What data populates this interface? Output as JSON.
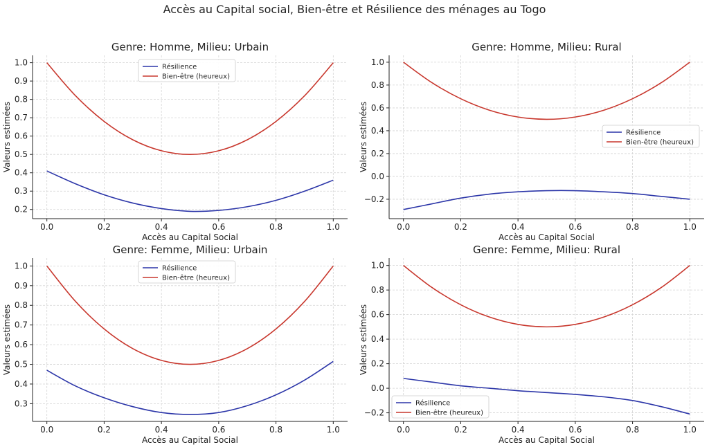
{
  "suptitle": "Accès au Capital social, Bien-être et Résilience des ménages au Togo",
  "colors": {
    "resilience": "#2b35a8",
    "bienetre": "#c8372d"
  },
  "chart_data": [
    {
      "type": "line",
      "title": "Genre: Homme, Milieu: Urbain",
      "xlabel": "Accès au Capital Social",
      "ylabel": "Valeurs estimées",
      "xlim": [
        -0.05,
        1.05
      ],
      "ylim": [
        0.15,
        1.04
      ],
      "xticks": [
        "0.0",
        "0.2",
        "0.4",
        "0.6",
        "0.8",
        "1.0"
      ],
      "yticks": [
        "0.2",
        "0.3",
        "0.4",
        "0.5",
        "0.6",
        "0.7",
        "0.8",
        "0.9",
        "1.0"
      ],
      "grid": true,
      "legend_position": "top-center",
      "x": [
        0.0,
        0.1,
        0.2,
        0.3,
        0.4,
        0.5,
        0.6,
        0.7,
        0.8,
        0.9,
        1.0
      ],
      "series": [
        {
          "name": "Résilience",
          "color": "#2b35a8",
          "values": [
            0.41,
            0.34,
            0.28,
            0.235,
            0.205,
            0.19,
            0.195,
            0.215,
            0.25,
            0.3,
            0.36
          ]
        },
        {
          "name": "Bien-être (heureux)",
          "color": "#c8372d",
          "values": [
            1.0,
            0.82,
            0.68,
            0.58,
            0.52,
            0.5,
            0.52,
            0.58,
            0.68,
            0.82,
            1.0
          ]
        }
      ]
    },
    {
      "type": "line",
      "title": "Genre: Homme, Milieu: Rural",
      "xlabel": "Accès au Capital Social",
      "ylabel": "Valeurs estimées",
      "xlim": [
        -0.05,
        1.05
      ],
      "ylim": [
        -0.37,
        1.06
      ],
      "xticks": [
        "0.0",
        "0.2",
        "0.4",
        "0.6",
        "0.8",
        "1.0"
      ],
      "yticks": [
        "−0.2",
        "0.0",
        "0.2",
        "0.4",
        "0.6",
        "0.8",
        "1.0"
      ],
      "grid": true,
      "legend_position": "center-right",
      "x": [
        0.0,
        0.1,
        0.2,
        0.3,
        0.4,
        0.5,
        0.6,
        0.7,
        0.8,
        0.9,
        1.0
      ],
      "series": [
        {
          "name": "Résilience",
          "color": "#2b35a8",
          "values": [
            -0.29,
            -0.24,
            -0.19,
            -0.155,
            -0.135,
            -0.125,
            -0.125,
            -0.135,
            -0.15,
            -0.175,
            -0.2
          ]
        },
        {
          "name": "Bien-être (heureux)",
          "color": "#c8372d",
          "values": [
            1.0,
            0.82,
            0.68,
            0.58,
            0.52,
            0.5,
            0.52,
            0.58,
            0.68,
            0.82,
            1.0
          ]
        }
      ]
    },
    {
      "type": "line",
      "title": "Genre: Femme, Milieu: Urbain",
      "xlabel": "Accès au Capital Social",
      "ylabel": "Valeurs estimées",
      "xlim": [
        -0.05,
        1.05
      ],
      "ylim": [
        0.21,
        1.04
      ],
      "xticks": [
        "0.0",
        "0.2",
        "0.4",
        "0.6",
        "0.8",
        "1.0"
      ],
      "yticks": [
        "0.3",
        "0.4",
        "0.5",
        "0.6",
        "0.7",
        "0.8",
        "0.9",
        "1.0"
      ],
      "grid": true,
      "legend_position": "top-center",
      "x": [
        0.0,
        0.1,
        0.2,
        0.3,
        0.4,
        0.5,
        0.6,
        0.7,
        0.8,
        0.9,
        1.0
      ],
      "series": [
        {
          "name": "Résilience",
          "color": "#2b35a8",
          "values": [
            0.47,
            0.39,
            0.33,
            0.285,
            0.255,
            0.245,
            0.255,
            0.29,
            0.345,
            0.42,
            0.515
          ]
        },
        {
          "name": "Bien-être (heureux)",
          "color": "#c8372d",
          "values": [
            1.0,
            0.82,
            0.68,
            0.58,
            0.52,
            0.5,
            0.52,
            0.58,
            0.68,
            0.82,
            1.0
          ]
        }
      ]
    },
    {
      "type": "line",
      "title": "Genre: Femme, Milieu: Rural",
      "xlabel": "Accès au Capital Social",
      "ylabel": "Valeurs estimées",
      "xlim": [
        -0.05,
        1.05
      ],
      "ylim": [
        -0.27,
        1.06
      ],
      "xticks": [
        "0.0",
        "0.2",
        "0.4",
        "0.6",
        "0.8",
        "1.0"
      ],
      "yticks": [
        "−0.2",
        "0.0",
        "0.2",
        "0.4",
        "0.6",
        "0.8",
        "1.0"
      ],
      "grid": true,
      "legend_position": "bottom-left",
      "x": [
        0.0,
        0.1,
        0.2,
        0.3,
        0.4,
        0.5,
        0.6,
        0.7,
        0.8,
        0.9,
        1.0
      ],
      "series": [
        {
          "name": "Résilience",
          "color": "#2b35a8",
          "values": [
            0.08,
            0.05,
            0.02,
            0.0,
            -0.02,
            -0.035,
            -0.05,
            -0.07,
            -0.1,
            -0.15,
            -0.21
          ]
        },
        {
          "name": "Bien-être (heureux)",
          "color": "#c8372d",
          "values": [
            1.0,
            0.82,
            0.68,
            0.58,
            0.52,
            0.5,
            0.52,
            0.58,
            0.68,
            0.82,
            1.0
          ]
        }
      ]
    }
  ]
}
